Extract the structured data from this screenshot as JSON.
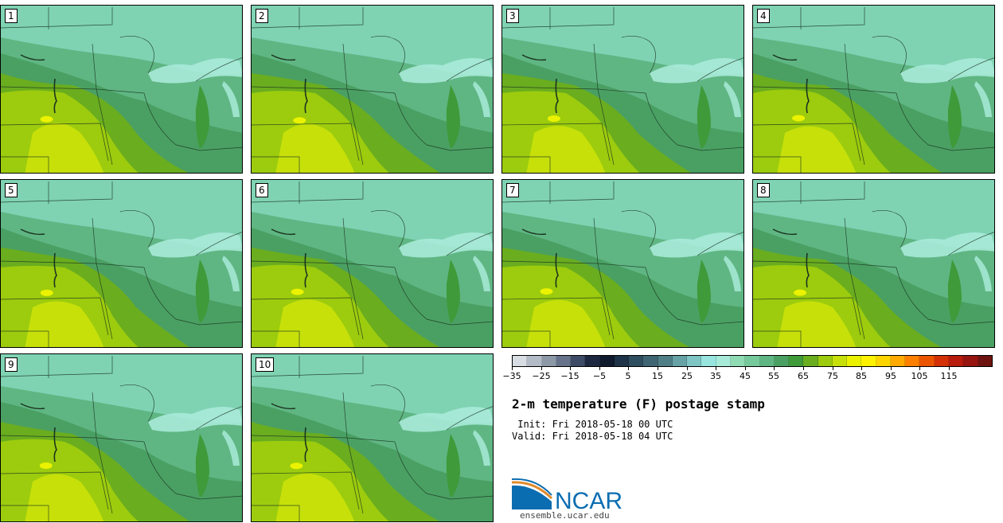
{
  "panels": [
    {
      "label": "1"
    },
    {
      "label": "2"
    },
    {
      "label": "3"
    },
    {
      "label": "4"
    },
    {
      "label": "5"
    },
    {
      "label": "6"
    },
    {
      "label": "7"
    },
    {
      "label": "8"
    },
    {
      "label": "9"
    },
    {
      "label": "10"
    }
  ],
  "colorbar": {
    "colors": [
      "#d8dde3",
      "#b3bcc6",
      "#8e99a8",
      "#66738a",
      "#3d4b66",
      "#1d2740",
      "#0f1a2c",
      "#1e3347",
      "#2e4d5f",
      "#3f6573",
      "#507f87",
      "#66a2a6",
      "#7ec5c4",
      "#98e4de",
      "#a8ead8",
      "#8fdbb3",
      "#76c99a",
      "#5fb683",
      "#4aa063",
      "#3f9a3a",
      "#6aad1f",
      "#9ccc0d",
      "#c7e00a",
      "#ebf200",
      "#fff200",
      "#ffd500",
      "#ffaa00",
      "#ff8000",
      "#ec5500",
      "#d43006",
      "#b81c0c",
      "#961510",
      "#6e1410"
    ],
    "tick_labels": [
      "−35",
      "−25",
      "−15",
      "−5",
      "5",
      "15",
      "25",
      "35",
      "45",
      "55",
      "65",
      "75",
      "85",
      "95",
      "105",
      "115"
    ]
  },
  "title": "2-m temperature (F) postage stamp",
  "init_line": " Init: Fri 2018-05-18 00 UTC",
  "valid_line": "Valid: Fri 2018-05-18 04 UTC",
  "logo": {
    "text": "NCAR",
    "url_text": "ensemble.ucar.edu",
    "brand_color": "#0b6db1"
  },
  "map_palette": {
    "light_north": "#7fd3b3",
    "cool": "#5fb683",
    "mid": "#4aa063",
    "lake_shore": "#3f9a3a",
    "warm": "#6aad1f",
    "warmer": "#9ccc0d",
    "hot": "#c7e00a",
    "hottest": "#ebf200",
    "lake_water": "#a8ead8"
  }
}
